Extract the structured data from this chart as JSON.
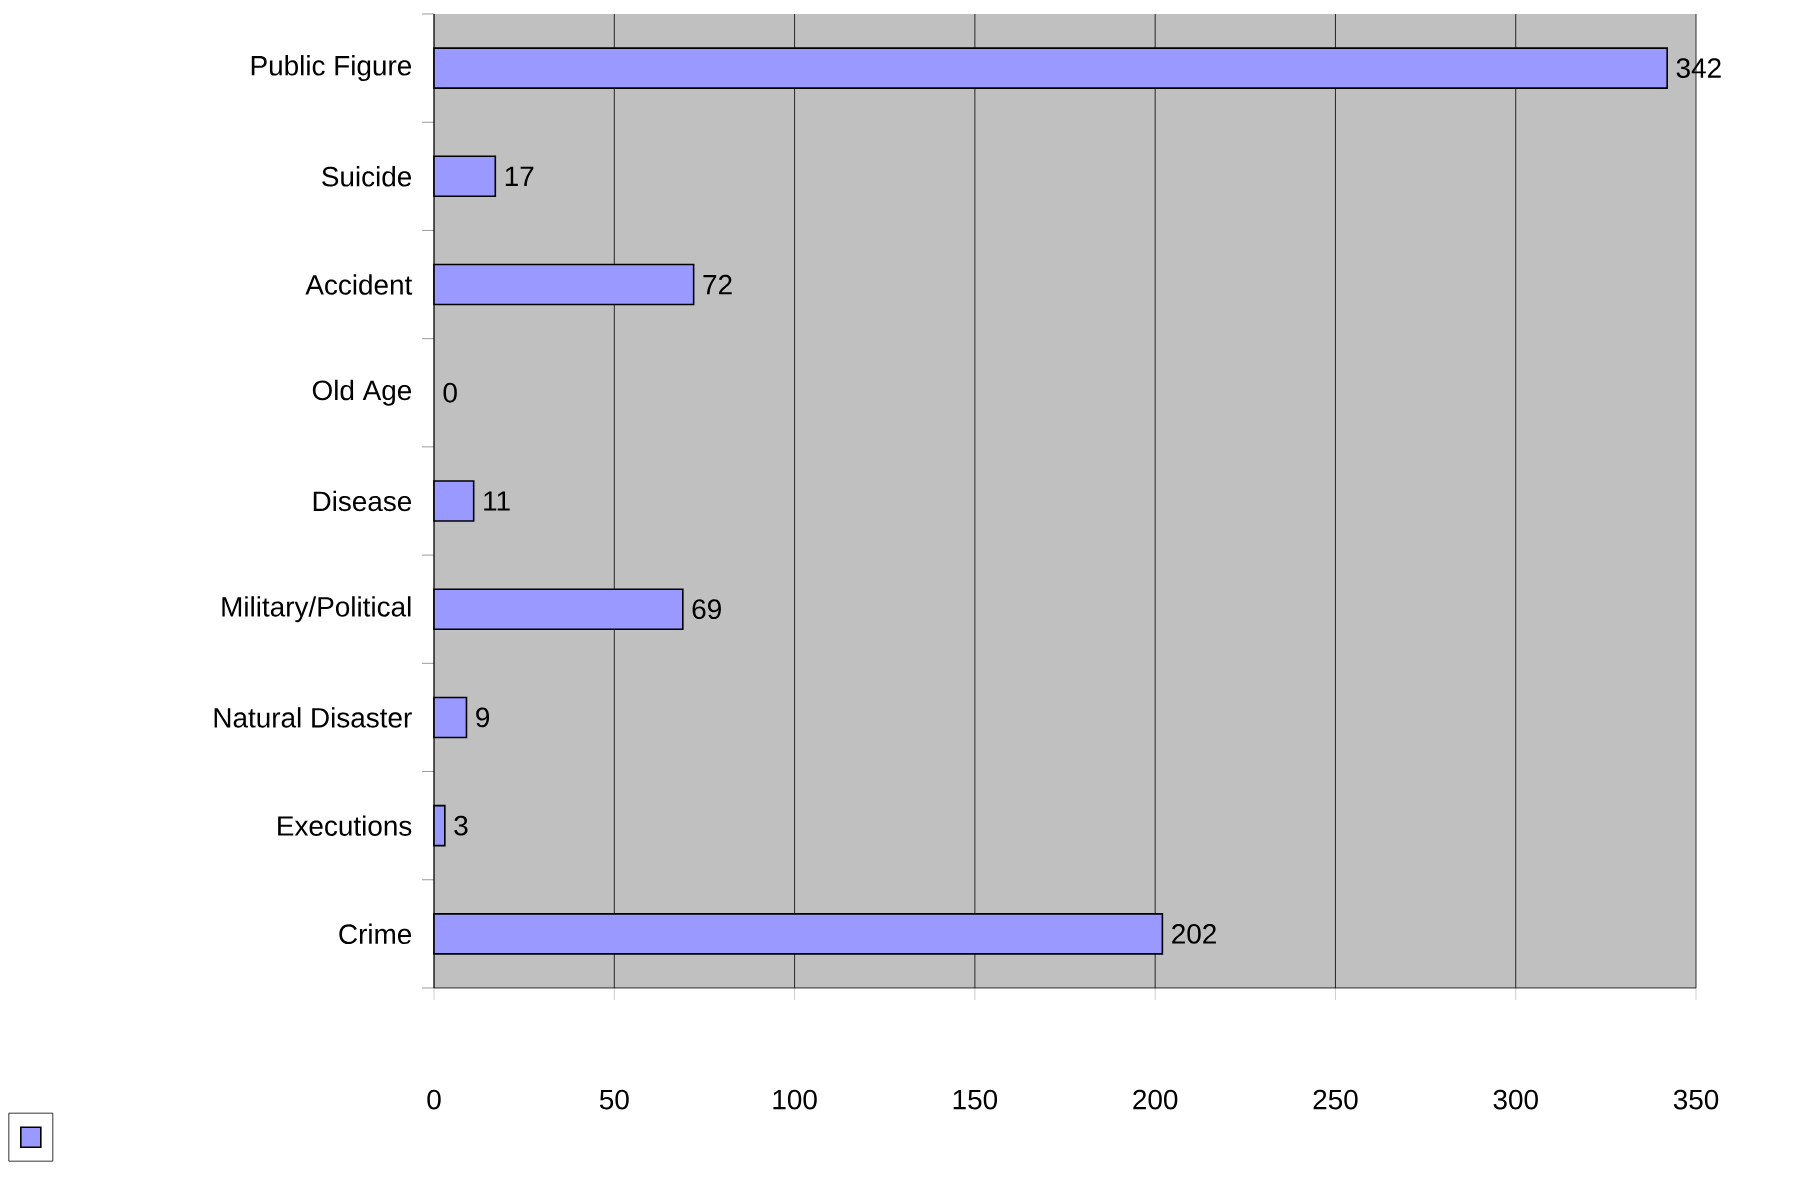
{
  "chart_data": {
    "type": "bar",
    "orientation": "horizontal",
    "categories": [
      "Public Figure",
      "Suicide",
      "Accident",
      "Old Age",
      "Disease",
      "Military/Political",
      "Natural Disaster",
      "Executions",
      "Crime"
    ],
    "values": [
      342,
      17,
      72,
      0,
      11,
      69,
      9,
      3,
      202
    ],
    "color": "#9999ff",
    "data_labels": true,
    "grid": "x",
    "xlim": [
      0,
      350
    ],
    "xticks": [
      0,
      50,
      100,
      150,
      200,
      250,
      300,
      350
    ]
  }
}
